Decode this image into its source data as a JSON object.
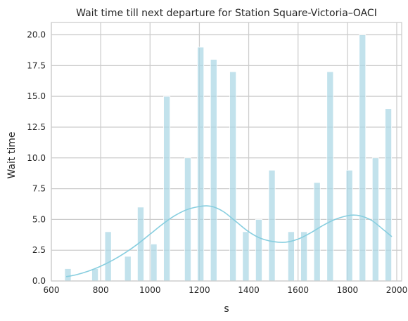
{
  "chart_data": {
    "type": "bar",
    "title": "Wait time till next departure for Station Square-Victoria–OACI",
    "xlabel": "s",
    "ylabel": "Wait time",
    "xlim": [
      600,
      2020
    ],
    "ylim": [
      0,
      21
    ],
    "xticks": [
      600,
      800,
      1000,
      1200,
      1400,
      1600,
      1800,
      2000
    ],
    "yticks": [
      0.0,
      2.5,
      5.0,
      7.5,
      10.0,
      12.5,
      15.0,
      17.5,
      20.0
    ],
    "grid": true,
    "bin_width": 26,
    "bars": [
      {
        "x": 667,
        "value": 1
      },
      {
        "x": 777,
        "value": 1
      },
      {
        "x": 830,
        "value": 4
      },
      {
        "x": 910,
        "value": 2
      },
      {
        "x": 962,
        "value": 6
      },
      {
        "x": 1015,
        "value": 3
      },
      {
        "x": 1068,
        "value": 15
      },
      {
        "x": 1153,
        "value": 10
      },
      {
        "x": 1205,
        "value": 19
      },
      {
        "x": 1258,
        "value": 18
      },
      {
        "x": 1336,
        "value": 17
      },
      {
        "x": 1388,
        "value": 4
      },
      {
        "x": 1441,
        "value": 5
      },
      {
        "x": 1494,
        "value": 9
      },
      {
        "x": 1572,
        "value": 4
      },
      {
        "x": 1624,
        "value": 4
      },
      {
        "x": 1677,
        "value": 8
      },
      {
        "x": 1730,
        "value": 17
      },
      {
        "x": 1808,
        "value": 9
      },
      {
        "x": 1861,
        "value": 20
      },
      {
        "x": 1914,
        "value": 10
      },
      {
        "x": 1966,
        "value": 14
      }
    ],
    "kde": {
      "x": [
        660,
        700,
        750,
        800,
        850,
        900,
        950,
        1000,
        1050,
        1100,
        1150,
        1200,
        1230,
        1260,
        1300,
        1350,
        1400,
        1450,
        1500,
        1550,
        1600,
        1650,
        1700,
        1750,
        1800,
        1830,
        1860,
        1900,
        1950,
        1980
      ],
      "y": [
        0.35,
        0.5,
        0.8,
        1.2,
        1.7,
        2.3,
        3.0,
        3.8,
        4.6,
        5.3,
        5.8,
        6.05,
        6.1,
        6.0,
        5.6,
        4.8,
        4.0,
        3.45,
        3.2,
        3.15,
        3.4,
        3.9,
        4.5,
        5.0,
        5.3,
        5.35,
        5.25,
        4.9,
        4.1,
        3.6
      ]
    },
    "colors": {
      "bar_fill": "#add8e6",
      "bar_edge": "#ffffff",
      "kde_line": "#87cedf",
      "grid": "#cccccc",
      "spine": "#cccccc",
      "text": "#262626"
    }
  }
}
